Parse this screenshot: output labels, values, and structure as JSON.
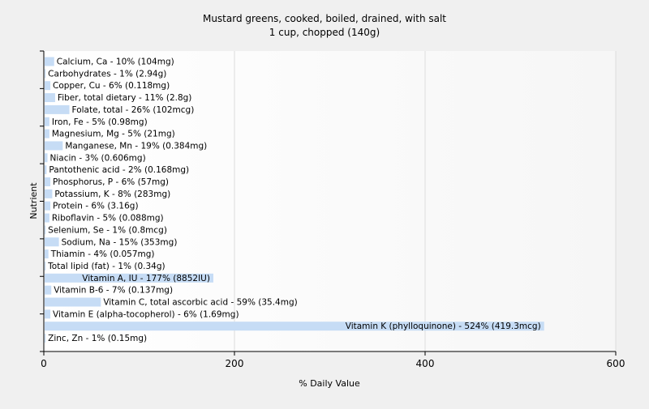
{
  "chart_data": {
    "type": "bar",
    "orientation": "horizontal",
    "title": "Mustard greens, cooked, boiled, drained, with salt",
    "subtitle": "1 cup, chopped (140g)",
    "xlabel": "% Daily Value",
    "ylabel": "Nutrient",
    "xlim": [
      0,
      600
    ],
    "xticks": [
      0,
      200,
      400,
      600
    ],
    "grid": true,
    "bar_color": "#c6dcf5",
    "categories": [
      "Calcium, Ca - 10% (104mg)",
      "Carbohydrates - 1% (2.94g)",
      "Copper, Cu - 6% (0.118mg)",
      "Fiber, total dietary - 11% (2.8g)",
      "Folate, total - 26% (102mcg)",
      "Iron, Fe - 5% (0.98mg)",
      "Magnesium, Mg - 5% (21mg)",
      "Manganese, Mn - 19% (0.384mg)",
      "Niacin - 3% (0.606mg)",
      "Pantothenic acid - 2% (0.168mg)",
      "Phosphorus, P - 6% (57mg)",
      "Potassium, K - 8% (283mg)",
      "Protein - 6% (3.16g)",
      "Riboflavin - 5% (0.088mg)",
      "Selenium, Se - 1% (0.8mcg)",
      "Sodium, Na - 15% (353mg)",
      "Thiamin - 4% (0.057mg)",
      "Total lipid (fat) - 1% (0.34g)",
      "Vitamin A, IU - 177% (8852IU)",
      "Vitamin B-6 - 7% (0.137mg)",
      "Vitamin C, total ascorbic acid - 59% (35.4mg)",
      "Vitamin E (alpha-tocopherol) - 6% (1.69mg)",
      "Vitamin K (phylloquinone) - 524% (419.3mcg)",
      "Zinc, Zn - 1% (0.15mg)"
    ],
    "values": [
      10,
      1,
      6,
      11,
      26,
      5,
      5,
      19,
      3,
      2,
      6,
      8,
      6,
      5,
      1,
      15,
      4,
      1,
      177,
      7,
      59,
      6,
      524,
      1
    ]
  }
}
